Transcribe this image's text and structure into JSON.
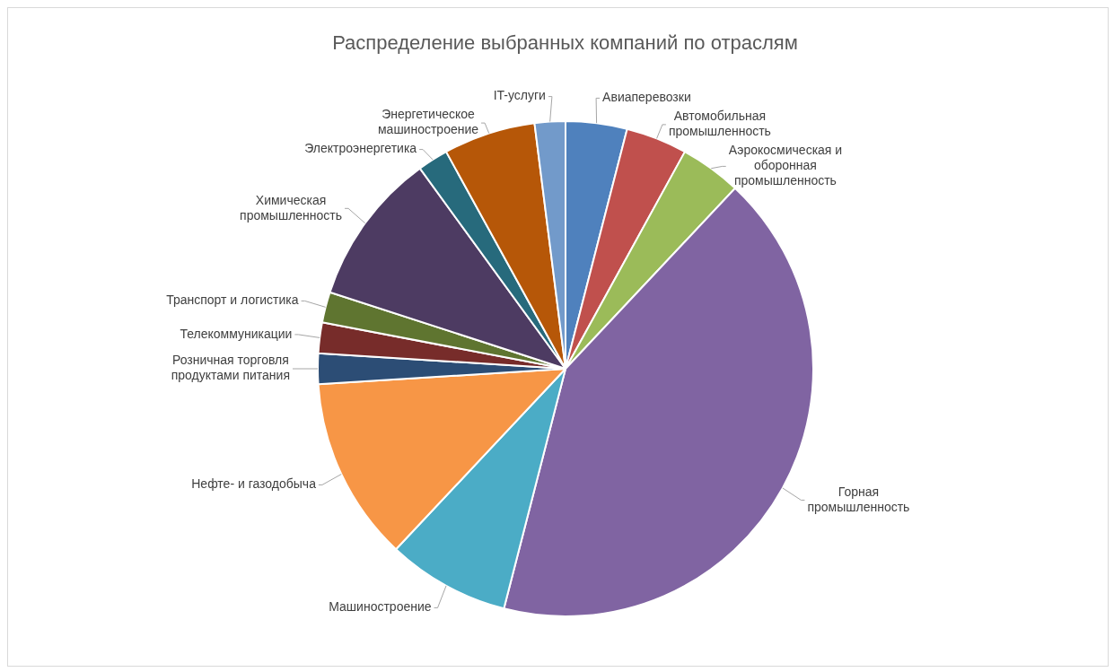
{
  "chart_data": {
    "type": "pie",
    "title": "Распределение выбранных компаний по отраслям",
    "categories": [
      "Авиаперевозки",
      "Автомобильная промышленность",
      "Аэрокосмическая и оборонная промышленность",
      "Горная промышленность",
      "Машиностроение",
      "Нефте- и газодобыча",
      "Розничная торговля продуктами питания",
      "Телекоммуникации",
      "Транспорт и логистика",
      "Химическая промышленность",
      "Электроэнергетика",
      "Энергетическое машиностроение",
      "IT-услуги"
    ],
    "values": [
      4,
      4,
      4,
      42,
      8,
      12,
      2,
      2,
      2,
      10,
      2,
      6,
      2
    ],
    "colors": [
      "#4f81bd",
      "#c0504d",
      "#9bbb59",
      "#8064a2",
      "#4bacc6",
      "#f79646",
      "#2c4d75",
      "#772c2a",
      "#5f7530",
      "#4d3b62",
      "#276a7c",
      "#b65708",
      "#729aca"
    ],
    "legend": false
  }
}
